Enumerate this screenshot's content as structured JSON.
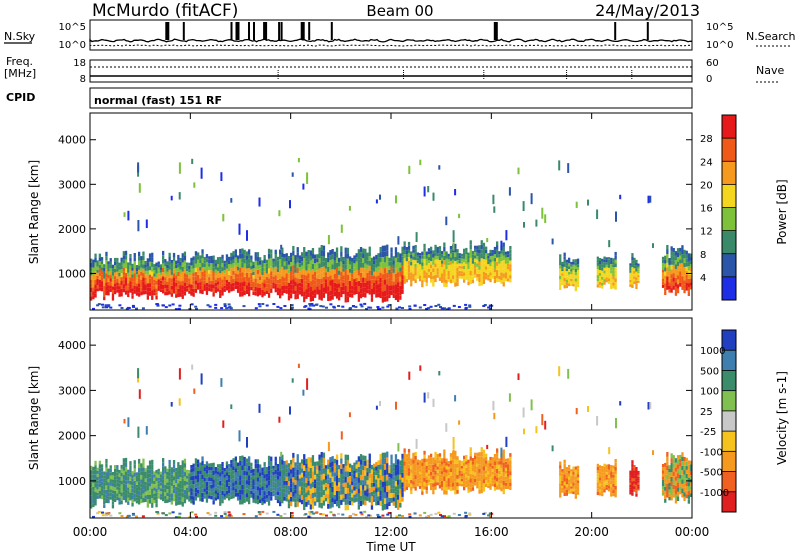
{
  "header": {
    "station": "McMurdo (fitACF)",
    "beam": "Beam 00",
    "date": "24/May/2013"
  },
  "noise_panel": {
    "left_label": "N.Sky",
    "right_label": "N.Search",
    "left_ticks": [
      "10^5",
      "10^0"
    ],
    "right_ticks": [
      "10^5",
      "10^0"
    ]
  },
  "freq_panel": {
    "left_label_1": "Freq.",
    "left_label_2": "[MHz]",
    "left_ticks": [
      "18",
      "8"
    ],
    "right_label": "Nave",
    "right_ticks": [
      "60",
      "0"
    ]
  },
  "cpid_panel": {
    "label": "CPID",
    "text": "normal (fast) 151 RF"
  },
  "chart_data": [
    {
      "type": "heatmap",
      "title": "",
      "ylabel": "Slant Range [km]",
      "ylim": [
        180,
        4600
      ],
      "yticks": [
        "1000",
        "2000",
        "3000",
        "4000"
      ],
      "x_ticks": [
        "00:00",
        "04:00",
        "08:00",
        "12:00",
        "16:00",
        "20:00",
        "00:00"
      ],
      "colorbar": {
        "label": "Power [dB]",
        "ticks": [
          "4",
          "8",
          "12",
          "16",
          "20",
          "24",
          "28"
        ],
        "colors": [
          "#1e2ee6",
          "#2a55a8",
          "#3a8a6a",
          "#7dc23a",
          "#f5d61e",
          "#f59a1e",
          "#f05a18",
          "#e61a1a"
        ]
      },
      "segments": [
        {
          "t0": 0.0,
          "t1": 4.0,
          "r0": 500,
          "r1": 1350,
          "core": 0.85
        },
        {
          "t0": 4.0,
          "t1": 7.8,
          "r0": 550,
          "r1": 1420,
          "core": 0.8
        },
        {
          "t0": 7.8,
          "t1": 12.5,
          "r0": 450,
          "r1": 1500,
          "core": 0.9
        },
        {
          "t0": 12.5,
          "t1": 16.8,
          "r0": 800,
          "r1": 1600,
          "core": 0.3
        },
        {
          "t0": 18.7,
          "t1": 19.5,
          "r0": 700,
          "r1": 1400,
          "core": 0.2
        },
        {
          "t0": 20.2,
          "t1": 21.0,
          "r0": 700,
          "r1": 1350,
          "core": 0.2
        },
        {
          "t0": 21.5,
          "t1": 21.9,
          "r0": 700,
          "r1": 1300,
          "core": 0.3
        },
        {
          "t0": 22.8,
          "t1": 24.0,
          "r0": 600,
          "r1": 1500,
          "core": 0.7
        }
      ]
    },
    {
      "type": "heatmap",
      "title": "",
      "ylabel": "Slant Range [km]",
      "xlabel": "Time UT",
      "ylim": [
        180,
        4600
      ],
      "yticks": [
        "1000",
        "2000",
        "3000",
        "4000"
      ],
      "x_ticks": [
        "00:00",
        "04:00",
        "08:00",
        "12:00",
        "16:00",
        "20:00",
        "00:00"
      ],
      "colorbar": {
        "label": "Velocity [m s-1]",
        "ticks": [
          "1000",
          "500",
          "100",
          "25",
          "-25",
          "-100",
          "-500",
          "-1000"
        ],
        "colors": [
          "#2040c0",
          "#3f7fb0",
          "#3a8c6a",
          "#80c050",
          "#c8c8c8",
          "#f5c21e",
          "#f59a1e",
          "#f06020",
          "#e02020"
        ]
      },
      "segments": [
        {
          "t0": 0.0,
          "t1": 4.0,
          "r0": 500,
          "r1": 1350,
          "vel": "green"
        },
        {
          "t0": 4.0,
          "t1": 7.8,
          "r0": 550,
          "r1": 1420,
          "vel": "blue-green"
        },
        {
          "t0": 7.8,
          "t1": 12.5,
          "r0": 450,
          "r1": 1500,
          "vel": "mixed"
        },
        {
          "t0": 12.5,
          "t1": 16.8,
          "r0": 800,
          "r1": 1600,
          "vel": "orange"
        },
        {
          "t0": 18.7,
          "t1": 19.5,
          "r0": 700,
          "r1": 1400,
          "vel": "orange"
        },
        {
          "t0": 20.2,
          "t1": 21.0,
          "r0": 700,
          "r1": 1350,
          "vel": "orange"
        },
        {
          "t0": 21.5,
          "t1": 21.9,
          "r0": 700,
          "r1": 1300,
          "vel": "red"
        },
        {
          "t0": 22.8,
          "t1": 24.0,
          "r0": 600,
          "r1": 1500,
          "vel": "green-orange"
        }
      ]
    }
  ]
}
